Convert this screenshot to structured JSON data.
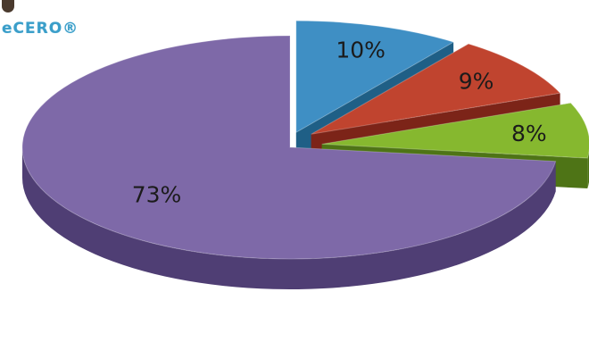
{
  "logo": {
    "text": "eCERO®"
  },
  "chart_data": {
    "type": "pie",
    "style": "3d-exploded",
    "values": [
      10,
      9,
      8,
      73
    ],
    "labels": [
      "10%",
      "9%",
      "8%",
      "73%"
    ],
    "colors": [
      "#3f8fc4",
      "#c0442f",
      "#86b82f",
      "#7e69a8"
    ],
    "side_colors": [
      "#1f5f86",
      "#7c2418",
      "#4e7416",
      "#4f3e74"
    ]
  }
}
